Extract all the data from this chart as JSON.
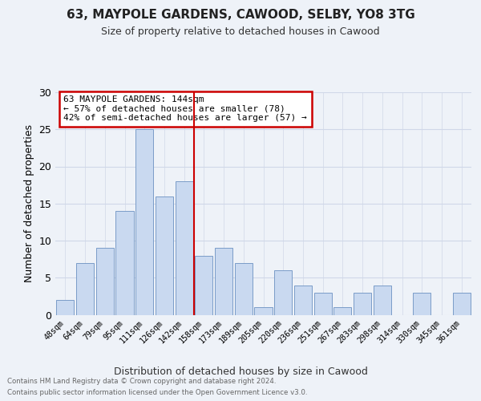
{
  "title1": "63, MAYPOLE GARDENS, CAWOOD, SELBY, YO8 3TG",
  "title2": "Size of property relative to detached houses in Cawood",
  "xlabel": "Distribution of detached houses by size in Cawood",
  "ylabel": "Number of detached properties",
  "categories": [
    "48sqm",
    "64sqm",
    "79sqm",
    "95sqm",
    "111sqm",
    "126sqm",
    "142sqm",
    "158sqm",
    "173sqm",
    "189sqm",
    "205sqm",
    "220sqm",
    "236sqm",
    "251sqm",
    "267sqm",
    "283sqm",
    "298sqm",
    "314sqm",
    "330sqm",
    "345sqm",
    "361sqm"
  ],
  "values": [
    2,
    7,
    9,
    14,
    25,
    16,
    18,
    8,
    9,
    7,
    1,
    6,
    4,
    3,
    1,
    3,
    4,
    0,
    3,
    0,
    3
  ],
  "bar_color": "#c9d9f0",
  "bar_edge_color": "#7a9cc8",
  "vline_x": 6.5,
  "vline_color": "#cc0000",
  "subject_label": "63 MAYPOLE GARDENS: 144sqm",
  "annotation_line1": "← 57% of detached houses are smaller (78)",
  "annotation_line2": "42% of semi-detached houses are larger (57) →",
  "annotation_box_color": "#ffffff",
  "annotation_box_edge": "#cc0000",
  "ylim": [
    0,
    30
  ],
  "yticks": [
    0,
    5,
    10,
    15,
    20,
    25,
    30
  ],
  "footer1": "Contains HM Land Registry data © Crown copyright and database right 2024.",
  "footer2": "Contains public sector information licensed under the Open Government Licence v3.0.",
  "bg_color": "#eef2f8",
  "grid_color_x": "#d0d8e8",
  "grid_color_y": "#d0d8e8"
}
